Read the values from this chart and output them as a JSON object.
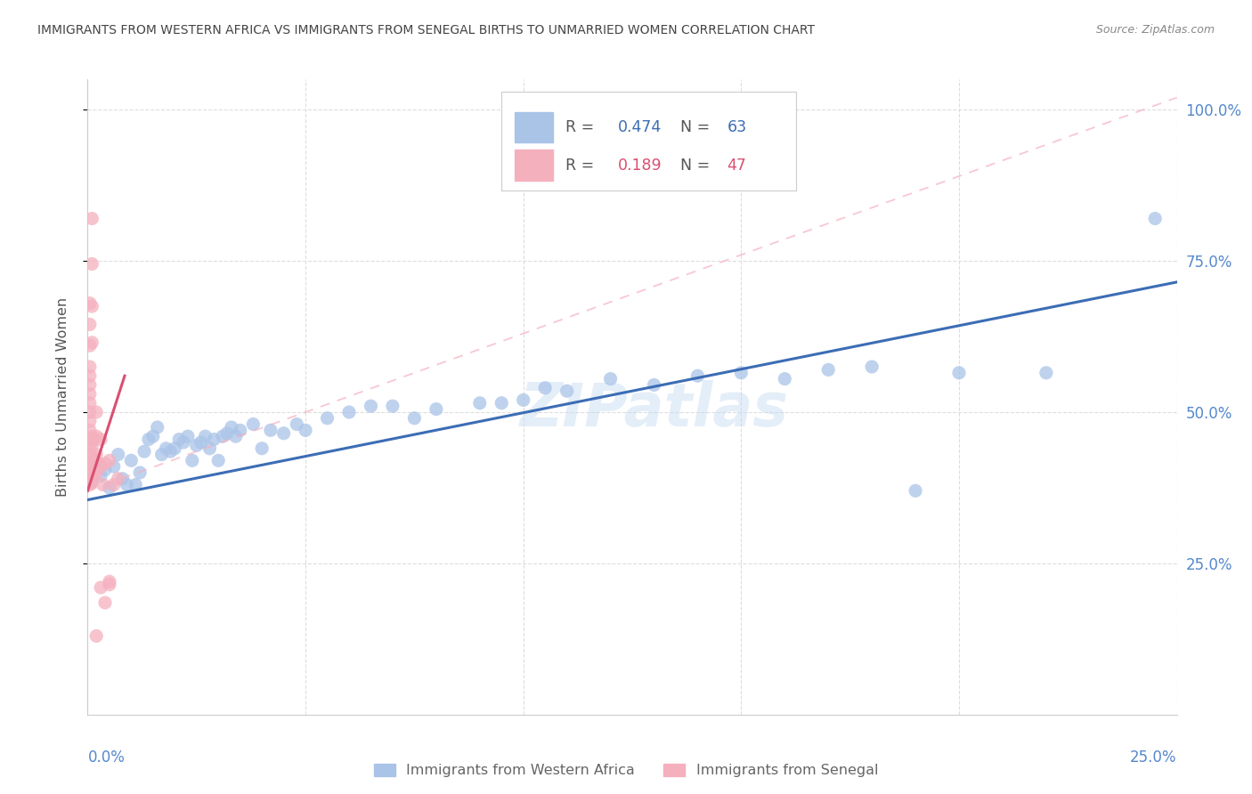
{
  "title": "IMMIGRANTS FROM WESTERN AFRICA VS IMMIGRANTS FROM SENEGAL BIRTHS TO UNMARRIED WOMEN CORRELATION CHART",
  "source": "Source: ZipAtlas.com",
  "ylabel": "Births to Unmarried Women",
  "legend_blue_r": "0.474",
  "legend_blue_n": "63",
  "legend_pink_r": "0.189",
  "legend_pink_n": "47",
  "legend_label_blue": "Immigrants from Western Africa",
  "legend_label_pink": "Immigrants from Senegal",
  "watermark": "ZIPatlas",
  "blue_color": "#aac4e8",
  "blue_dark": "#3c6db5",
  "pink_color": "#f5b0be",
  "pink_dark": "#d95070",
  "right_axis_color": "#5588cc",
  "blue_scatter": [
    [
      0.001,
      0.385
    ],
    [
      0.002,
      0.415
    ],
    [
      0.003,
      0.395
    ],
    [
      0.004,
      0.405
    ],
    [
      0.005,
      0.375
    ],
    [
      0.006,
      0.41
    ],
    [
      0.007,
      0.43
    ],
    [
      0.008,
      0.39
    ],
    [
      0.009,
      0.38
    ],
    [
      0.01,
      0.42
    ],
    [
      0.011,
      0.38
    ],
    [
      0.012,
      0.4
    ],
    [
      0.013,
      0.435
    ],
    [
      0.014,
      0.455
    ],
    [
      0.015,
      0.46
    ],
    [
      0.016,
      0.475
    ],
    [
      0.017,
      0.43
    ],
    [
      0.018,
      0.44
    ],
    [
      0.019,
      0.435
    ],
    [
      0.02,
      0.44
    ],
    [
      0.021,
      0.455
    ],
    [
      0.022,
      0.45
    ],
    [
      0.023,
      0.46
    ],
    [
      0.024,
      0.42
    ],
    [
      0.025,
      0.445
    ],
    [
      0.026,
      0.45
    ],
    [
      0.027,
      0.46
    ],
    [
      0.028,
      0.44
    ],
    [
      0.029,
      0.455
    ],
    [
      0.03,
      0.42
    ],
    [
      0.031,
      0.46
    ],
    [
      0.032,
      0.465
    ],
    [
      0.033,
      0.475
    ],
    [
      0.034,
      0.46
    ],
    [
      0.035,
      0.47
    ],
    [
      0.038,
      0.48
    ],
    [
      0.04,
      0.44
    ],
    [
      0.042,
      0.47
    ],
    [
      0.045,
      0.465
    ],
    [
      0.048,
      0.48
    ],
    [
      0.05,
      0.47
    ],
    [
      0.055,
      0.49
    ],
    [
      0.06,
      0.5
    ],
    [
      0.065,
      0.51
    ],
    [
      0.07,
      0.51
    ],
    [
      0.075,
      0.49
    ],
    [
      0.08,
      0.505
    ],
    [
      0.09,
      0.515
    ],
    [
      0.095,
      0.515
    ],
    [
      0.1,
      0.52
    ],
    [
      0.105,
      0.54
    ],
    [
      0.11,
      0.535
    ],
    [
      0.12,
      0.555
    ],
    [
      0.13,
      0.545
    ],
    [
      0.14,
      0.56
    ],
    [
      0.15,
      0.565
    ],
    [
      0.16,
      0.555
    ],
    [
      0.17,
      0.57
    ],
    [
      0.18,
      0.575
    ],
    [
      0.19,
      0.37
    ],
    [
      0.2,
      0.565
    ],
    [
      0.22,
      0.565
    ],
    [
      0.245,
      0.82
    ]
  ],
  "pink_scatter": [
    [
      0.0005,
      0.38
    ],
    [
      0.0005,
      0.4
    ],
    [
      0.0005,
      0.415
    ],
    [
      0.0005,
      0.43
    ],
    [
      0.0005,
      0.445
    ],
    [
      0.0005,
      0.455
    ],
    [
      0.0005,
      0.47
    ],
    [
      0.0005,
      0.485
    ],
    [
      0.0005,
      0.5
    ],
    [
      0.0005,
      0.515
    ],
    [
      0.0005,
      0.53
    ],
    [
      0.0005,
      0.545
    ],
    [
      0.0005,
      0.56
    ],
    [
      0.0005,
      0.575
    ],
    [
      0.001,
      0.385
    ],
    [
      0.001,
      0.4
    ],
    [
      0.001,
      0.415
    ],
    [
      0.001,
      0.43
    ],
    [
      0.001,
      0.445
    ],
    [
      0.001,
      0.46
    ],
    [
      0.0015,
      0.395
    ],
    [
      0.0015,
      0.42
    ],
    [
      0.0015,
      0.455
    ],
    [
      0.002,
      0.4
    ],
    [
      0.002,
      0.43
    ],
    [
      0.002,
      0.46
    ],
    [
      0.002,
      0.5
    ],
    [
      0.0025,
      0.415
    ],
    [
      0.003,
      0.41
    ],
    [
      0.003,
      0.455
    ],
    [
      0.0035,
      0.38
    ],
    [
      0.004,
      0.415
    ],
    [
      0.005,
      0.42
    ],
    [
      0.006,
      0.38
    ],
    [
      0.007,
      0.39
    ],
    [
      0.001,
      0.675
    ],
    [
      0.001,
      0.745
    ],
    [
      0.001,
      0.82
    ],
    [
      0.0005,
      0.61
    ],
    [
      0.0005,
      0.645
    ],
    [
      0.0005,
      0.68
    ],
    [
      0.001,
      0.615
    ],
    [
      0.002,
      0.13
    ],
    [
      0.003,
      0.21
    ],
    [
      0.005,
      0.215
    ],
    [
      0.005,
      0.22
    ],
    [
      0.004,
      0.185
    ]
  ],
  "blue_trend_x": [
    0.0,
    0.25
  ],
  "blue_trend_y": [
    0.355,
    0.715
  ],
  "pink_solid_trend_x": [
    0.0,
    0.0085
  ],
  "pink_solid_trend_y": [
    0.37,
    0.56
  ],
  "pink_dash_trend_x": [
    0.0,
    0.25
  ],
  "pink_dash_trend_y": [
    0.37,
    1.02
  ],
  "xlim": [
    0,
    0.25
  ],
  "ylim": [
    0.0,
    1.05
  ],
  "yticks": [
    0.25,
    0.5,
    0.75,
    1.0
  ],
  "ytick_labels": [
    "25.0%",
    "50.0%",
    "75.0%",
    "100.0%"
  ]
}
